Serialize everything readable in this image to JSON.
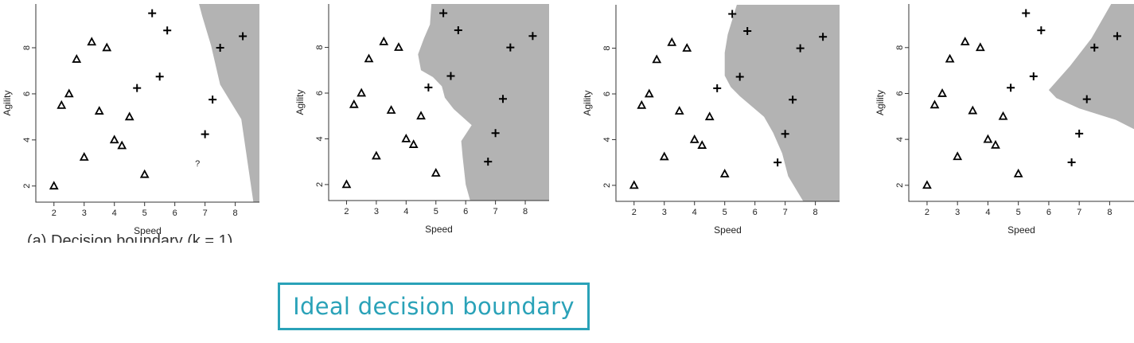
{
  "chart_data": [
    {
      "type": "scatter",
      "title": "",
      "xlabel": "Speed",
      "ylabel": "Agility",
      "xlim": [
        1.4,
        8.8
      ],
      "ylim": [
        1.3,
        9.9
      ],
      "xticks": [
        "2",
        "3",
        "4",
        "5",
        "6",
        "7",
        "8"
      ],
      "yticks": [
        "2",
        "4",
        "6",
        "8"
      ],
      "grid": false,
      "series": [
        {
          "marker": "triangle",
          "points": [
            [
              2.0,
              2.0
            ],
            [
              2.25,
              5.5
            ],
            [
              2.5,
              6.0
            ],
            [
              2.75,
              7.5
            ],
            [
              3.0,
              3.25
            ],
            [
              3.25,
              8.25
            ],
            [
              3.5,
              5.25
            ],
            [
              3.75,
              8.0
            ],
            [
              4.0,
              4.0
            ],
            [
              4.25,
              3.75
            ],
            [
              4.5,
              5.0
            ],
            [
              5.0,
              2.5
            ]
          ]
        },
        {
          "marker": "plus",
          "points": [
            [
              5.25,
              9.5
            ],
            [
              5.75,
              8.75
            ],
            [
              7.5,
              8.0
            ],
            [
              8.25,
              8.5
            ],
            [
              5.5,
              6.75
            ],
            [
              4.75,
              6.25
            ],
            [
              7.25,
              5.75
            ],
            [
              7.0,
              4.25
            ]
          ]
        }
      ],
      "query_label": "?",
      "query_point": [
        6.75,
        3.0
      ],
      "decision_region": [
        [
          3.3,
          9.9
        ],
        [
          8.8,
          9.9
        ],
        [
          8.8,
          1.3
        ],
        [
          8.6,
          1.3
        ],
        [
          8.2,
          4.9
        ],
        [
          7.5,
          6.4
        ],
        [
          7.2,
          8.1
        ],
        [
          6.9,
          9.4
        ],
        [
          6.8,
          9.9
        ],
        [
          3.3,
          9.9
        ]
      ]
    },
    {
      "type": "scatter",
      "title": "",
      "xlabel": "Speed",
      "ylabel": "Agility",
      "xlim": [
        1.4,
        8.8
      ],
      "ylim": [
        1.3,
        9.9
      ],
      "xticks": [
        "2",
        "3",
        "4",
        "5",
        "6",
        "7",
        "8"
      ],
      "yticks": [
        "2",
        "4",
        "6",
        "8"
      ],
      "grid": false,
      "series": [
        {
          "marker": "triangle",
          "points": [
            [
              2.0,
              2.0
            ],
            [
              2.25,
              5.5
            ],
            [
              2.5,
              6.0
            ],
            [
              2.75,
              7.5
            ],
            [
              3.0,
              3.25
            ],
            [
              3.25,
              8.25
            ],
            [
              3.5,
              5.25
            ],
            [
              3.75,
              8.0
            ],
            [
              4.0,
              4.0
            ],
            [
              4.25,
              3.75
            ],
            [
              4.5,
              5.0
            ],
            [
              5.0,
              2.5
            ]
          ]
        },
        {
          "marker": "plus",
          "points": [
            [
              5.25,
              9.5
            ],
            [
              5.75,
              8.75
            ],
            [
              7.5,
              8.0
            ],
            [
              8.25,
              8.5
            ],
            [
              5.5,
              6.75
            ],
            [
              4.75,
              6.25
            ],
            [
              7.25,
              5.75
            ],
            [
              7.0,
              4.25
            ],
            [
              6.75,
              3.0
            ]
          ]
        }
      ],
      "decision_region": [
        [
          4.85,
          9.9
        ],
        [
          8.8,
          9.9
        ],
        [
          8.8,
          1.3
        ],
        [
          6.15,
          1.3
        ],
        [
          6.0,
          2.0
        ],
        [
          5.9,
          3.2
        ],
        [
          5.85,
          3.9
        ],
        [
          6.0,
          4.2
        ],
        [
          6.2,
          4.6
        ],
        [
          5.6,
          5.3
        ],
        [
          5.3,
          5.8
        ],
        [
          5.2,
          6.3
        ],
        [
          4.9,
          6.7
        ],
        [
          4.5,
          7.0
        ],
        [
          4.4,
          7.7
        ],
        [
          4.6,
          8.4
        ],
        [
          4.8,
          9.0
        ],
        [
          4.85,
          9.9
        ]
      ]
    },
    {
      "type": "scatter",
      "title": "",
      "xlabel": "Speed",
      "ylabel": "Agility",
      "xlim": [
        1.4,
        8.8
      ],
      "ylim": [
        1.3,
        9.9
      ],
      "xticks": [
        "2",
        "3",
        "4",
        "5",
        "6",
        "7",
        "8"
      ],
      "yticks": [
        "2",
        "4",
        "6",
        "8"
      ],
      "grid": false,
      "series": [
        {
          "marker": "triangle",
          "points": [
            [
              2.0,
              2.0
            ],
            [
              2.25,
              5.5
            ],
            [
              2.5,
              6.0
            ],
            [
              2.75,
              7.5
            ],
            [
              3.0,
              3.25
            ],
            [
              3.25,
              8.25
            ],
            [
              3.5,
              5.25
            ],
            [
              3.75,
              8.0
            ],
            [
              4.0,
              4.0
            ],
            [
              4.25,
              3.75
            ],
            [
              4.5,
              5.0
            ],
            [
              5.0,
              2.5
            ]
          ]
        },
        {
          "marker": "plus",
          "points": [
            [
              5.25,
              9.5
            ],
            [
              5.75,
              8.75
            ],
            [
              7.5,
              8.0
            ],
            [
              8.25,
              8.5
            ],
            [
              5.5,
              6.75
            ],
            [
              4.75,
              6.25
            ],
            [
              7.25,
              5.75
            ],
            [
              7.0,
              4.25
            ],
            [
              6.75,
              3.0
            ]
          ]
        }
      ],
      "decision_region": [
        [
          5.4,
          9.9
        ],
        [
          8.8,
          9.9
        ],
        [
          8.8,
          1.3
        ],
        [
          7.6,
          1.3
        ],
        [
          7.1,
          2.4
        ],
        [
          6.9,
          3.4
        ],
        [
          6.6,
          4.3
        ],
        [
          6.3,
          5.0
        ],
        [
          5.5,
          5.9
        ],
        [
          5.2,
          6.3
        ],
        [
          5.0,
          6.8
        ],
        [
          5.0,
          7.8
        ],
        [
          5.1,
          8.6
        ],
        [
          5.4,
          9.9
        ]
      ]
    },
    {
      "type": "scatter",
      "title": "",
      "xlabel": "Speed",
      "ylabel": "Agility",
      "xlim": [
        1.4,
        8.8
      ],
      "ylim": [
        1.3,
        9.9
      ],
      "xticks": [
        "2",
        "3",
        "4",
        "5",
        "6",
        "7",
        "8"
      ],
      "yticks": [
        "2",
        "4",
        "6",
        "8"
      ],
      "grid": false,
      "series": [
        {
          "marker": "triangle",
          "points": [
            [
              2.0,
              2.0
            ],
            [
              2.25,
              5.5
            ],
            [
              2.5,
              6.0
            ],
            [
              2.75,
              7.5
            ],
            [
              3.0,
              3.25
            ],
            [
              3.25,
              8.25
            ],
            [
              3.5,
              5.25
            ],
            [
              3.75,
              8.0
            ],
            [
              4.0,
              4.0
            ],
            [
              4.25,
              3.75
            ],
            [
              4.5,
              5.0
            ],
            [
              5.0,
              2.5
            ]
          ]
        },
        {
          "marker": "plus",
          "points": [
            [
              5.25,
              9.5
            ],
            [
              5.75,
              8.75
            ],
            [
              7.5,
              8.0
            ],
            [
              8.25,
              8.5
            ],
            [
              5.5,
              6.75
            ],
            [
              4.75,
              6.25
            ],
            [
              7.25,
              5.75
            ],
            [
              7.0,
              4.25
            ],
            [
              6.75,
              3.0
            ]
          ]
        }
      ],
      "decision_region": [
        [
          8.05,
          9.9
        ],
        [
          8.8,
          9.9
        ],
        [
          8.8,
          4.45
        ],
        [
          8.2,
          4.85
        ],
        [
          7.0,
          5.35
        ],
        [
          6.25,
          5.8
        ],
        [
          6.0,
          6.15
        ],
        [
          6.7,
          7.2
        ],
        [
          7.4,
          8.4
        ],
        [
          8.05,
          9.9
        ]
      ]
    }
  ],
  "clipped_caption": "(a) Decision boundary (k = 1)",
  "ideal_label": "Ideal decision boundary",
  "colors": {
    "region": "#b3b3b3",
    "ideal_accent": "#2aa2b8",
    "marker": "#000000"
  }
}
